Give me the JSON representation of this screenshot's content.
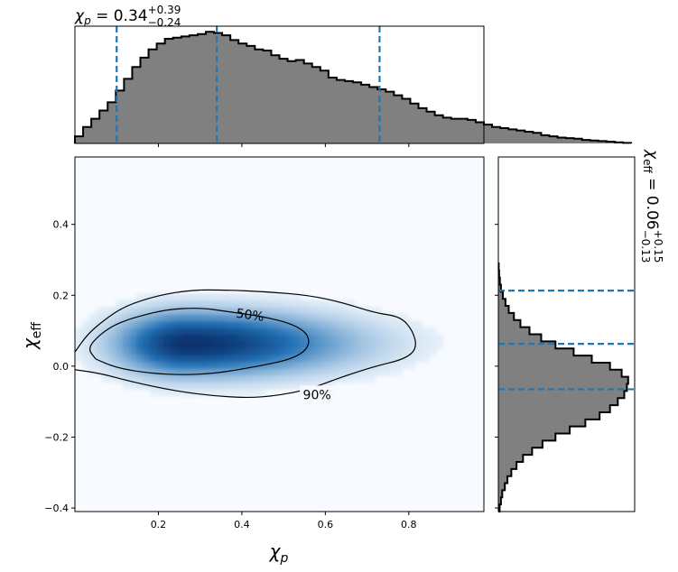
{
  "chart_data": {
    "type": "corner",
    "colors": {
      "hist_fill": "#808080",
      "hist_edge": "#000000",
      "quantile_line": "#1f77b4",
      "density_cmap_high": "#08306b",
      "density_cmap_low": "#f7fbff"
    },
    "x_label_main": "χ",
    "x_label_sub": "p",
    "y_label_main": "χ",
    "y_label_sub": "eff",
    "top_title": {
      "symbol": "χ",
      "sub": "p",
      "eq": " = 0.34",
      "plus": "+0.39",
      "minus": "−0.24"
    },
    "right_title": {
      "symbol": "χ",
      "sub": "eff",
      "eq": " = 0.06",
      "plus": "+0.15",
      "minus": "−0.13"
    },
    "x_range": [
      0.0,
      0.98
    ],
    "y_range": [
      -0.41,
      0.59
    ],
    "x_ticks": [
      {
        "value": 0.2,
        "label": "0.2"
      },
      {
        "value": 0.4,
        "label": "0.4"
      },
      {
        "value": 0.6,
        "label": "0.6"
      },
      {
        "value": 0.8,
        "label": "0.8"
      }
    ],
    "y_ticks": [
      {
        "value": -0.4,
        "label": "−0.4"
      },
      {
        "value": -0.2,
        "label": "−0.2"
      },
      {
        "value": 0.0,
        "label": "0.0"
      },
      {
        "value": 0.2,
        "label": "0.2"
      },
      {
        "value": 0.4,
        "label": "0.4"
      }
    ],
    "chi_p_quantiles": [
      0.1,
      0.34,
      0.73
    ],
    "chi_eff_quantiles": [
      -0.065,
      0.063,
      0.213
    ],
    "chi_p_hist": {
      "bin_start": 0.0,
      "bin_width": 0.0196,
      "counts": [
        0.06,
        0.14,
        0.21,
        0.28,
        0.35,
        0.45,
        0.55,
        0.65,
        0.73,
        0.8,
        0.85,
        0.89,
        0.9,
        0.91,
        0.92,
        0.93,
        0.95,
        0.94,
        0.92,
        0.88,
        0.85,
        0.83,
        0.8,
        0.79,
        0.75,
        0.72,
        0.7,
        0.71,
        0.68,
        0.65,
        0.62,
        0.56,
        0.54,
        0.53,
        0.52,
        0.5,
        0.48,
        0.46,
        0.44,
        0.41,
        0.38,
        0.34,
        0.3,
        0.27,
        0.24,
        0.22,
        0.21,
        0.21,
        0.2,
        0.18,
        0.16,
        0.14,
        0.13,
        0.12,
        0.11,
        0.1,
        0.09,
        0.07,
        0.06,
        0.05,
        0.045,
        0.04,
        0.03,
        0.025,
        0.02,
        0.015,
        0.01,
        0.005
      ]
    },
    "chi_eff_hist": {
      "bin_start": -0.41,
      "bin_width": 0.02,
      "counts": [
        0.01,
        0.02,
        0.03,
        0.05,
        0.07,
        0.1,
        0.14,
        0.19,
        0.26,
        0.34,
        0.44,
        0.55,
        0.67,
        0.78,
        0.86,
        0.92,
        0.97,
        0.99,
        1.0,
        0.95,
        0.86,
        0.72,
        0.58,
        0.44,
        0.33,
        0.24,
        0.17,
        0.12,
        0.08,
        0.055,
        0.035,
        0.02,
        0.012,
        0.006,
        0.003
      ]
    },
    "density_peak": {
      "chi_p": 0.27,
      "chi_eff": 0.065,
      "sigma_chi_p": 0.13,
      "sigma_chi_eff": 0.055,
      "skew_tail": 0.35
    },
    "contours": [
      {
        "label": "50%",
        "label_at": [
          0.42,
          0.145
        ],
        "points": [
          [
            0.05,
            0.02
          ],
          [
            0.03,
            0.05
          ],
          [
            0.06,
            0.09
          ],
          [
            0.1,
            0.12
          ],
          [
            0.15,
            0.14
          ],
          [
            0.22,
            0.16
          ],
          [
            0.3,
            0.165
          ],
          [
            0.36,
            0.155
          ],
          [
            0.45,
            0.14
          ],
          [
            0.52,
            0.12
          ],
          [
            0.56,
            0.09
          ],
          [
            0.56,
            0.05
          ],
          [
            0.52,
            0.02
          ],
          [
            0.44,
            0.0
          ],
          [
            0.34,
            -0.02
          ],
          [
            0.26,
            -0.025
          ],
          [
            0.18,
            -0.02
          ],
          [
            0.1,
            -0.005
          ],
          [
            0.05,
            0.02
          ]
        ]
      },
      {
        "label": "90%",
        "label_at": [
          0.58,
          -0.08
        ],
        "points": [
          [
            0.0,
            0.04
          ],
          [
            0.03,
            0.09
          ],
          [
            0.07,
            0.13
          ],
          [
            0.12,
            0.17
          ],
          [
            0.2,
            0.2
          ],
          [
            0.28,
            0.215
          ],
          [
            0.36,
            0.215
          ],
          [
            0.46,
            0.21
          ],
          [
            0.56,
            0.2
          ],
          [
            0.64,
            0.18
          ],
          [
            0.72,
            0.15
          ],
          [
            0.78,
            0.14
          ],
          [
            0.81,
            0.1
          ],
          [
            0.82,
            0.05
          ],
          [
            0.79,
            0.02
          ],
          [
            0.72,
            0.0
          ],
          [
            0.64,
            -0.03
          ],
          [
            0.55,
            -0.07
          ],
          [
            0.44,
            -0.09
          ],
          [
            0.34,
            -0.085
          ],
          [
            0.24,
            -0.07
          ],
          [
            0.14,
            -0.045
          ],
          [
            0.06,
            -0.02
          ],
          [
            0.0,
            -0.01
          ]
        ]
      }
    ]
  }
}
